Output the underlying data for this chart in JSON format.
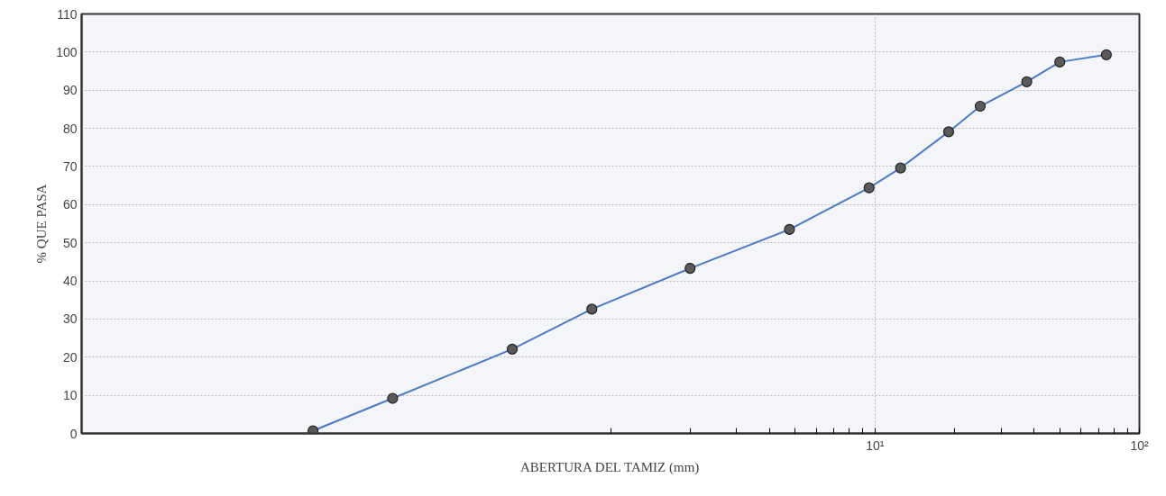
{
  "chart_data": {
    "type": "line",
    "xlabel": "ABERTURA DEL TAMIZ (mm)",
    "ylabel": "% QUE PASA",
    "log": "x",
    "x": [
      0.075,
      0.15,
      0.425,
      0.85,
      2.0,
      4.75,
      9.5,
      12.5,
      19.0,
      25.0,
      37.5,
      50.0,
      75.0
    ],
    "series": [
      {
        "color": "#4a7bc4",
        "values": [
          0.7,
          9.2,
          22.1,
          32.6,
          43.3,
          53.5,
          64.4,
          69.6,
          79.1,
          85.8,
          92.2,
          97.4,
          99.3
        ]
      }
    ],
    "xlim": [
      0.01,
      100
    ],
    "xticks": [
      {
        "value": 1,
        "label": null
      },
      {
        "value": 2,
        "label": null
      },
      {
        "value": 3,
        "label": null
      },
      {
        "value": 4,
        "label": null
      },
      {
        "value": 5,
        "label": null
      },
      {
        "value": 6,
        "label": null
      },
      {
        "value": 7,
        "label": null
      },
      {
        "value": 8,
        "label": null
      },
      {
        "value": 9,
        "label": null
      },
      {
        "value": 10,
        "label": "10¹"
      },
      {
        "value": 20,
        "label": null
      },
      {
        "value": 30,
        "label": null
      },
      {
        "value": 40,
        "label": null
      },
      {
        "value": 50,
        "label": null
      },
      {
        "value": 60,
        "label": null
      },
      {
        "value": 70,
        "label": null
      },
      {
        "value": 80,
        "label": null
      },
      {
        "value": 90,
        "label": null
      },
      {
        "value": 100,
        "label": "10²"
      }
    ],
    "ylim": [
      0,
      110
    ],
    "yticks": [
      0,
      10,
      20,
      30,
      40,
      50,
      60,
      70,
      80,
      90,
      100,
      110
    ],
    "grid": true,
    "marker": "circle",
    "line_style": "solid"
  }
}
